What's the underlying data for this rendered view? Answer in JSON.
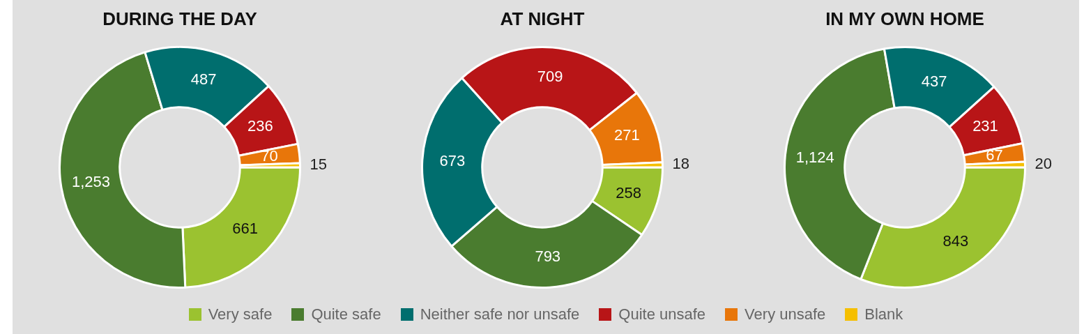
{
  "chart_data": [
    {
      "type": "donut",
      "title": "DURING THE DAY",
      "categories": [
        "Very safe",
        "Quite safe",
        "Neither safe nor unsafe",
        "Quite unsafe",
        "Very unsafe",
        "Blank"
      ],
      "values": [
        661,
        1253,
        487,
        236,
        70,
        15
      ],
      "value_labels": [
        "661",
        "1,253",
        "487",
        "236",
        "70",
        "15"
      ],
      "colors": [
        "#9bc230",
        "#4a7c2f",
        "#006e6e",
        "#b81517",
        "#e8760a",
        "#f5bf00"
      ],
      "legend": "bottom"
    },
    {
      "type": "donut",
      "title": "AT NIGHT",
      "categories": [
        null,
        null,
        null,
        null,
        null,
        null
      ],
      "values": [
        258,
        793,
        673,
        709,
        271,
        18
      ],
      "colors": [
        "#9bc230",
        "#4a7c2f",
        "#006e6e",
        "#b81517",
        "#e8760a",
        "#f5bf00"
      ],
      "data_labels": true
    },
    {
      "type": "donut",
      "title": "IN MY OWN HOME",
      "categories": [
        null,
        null,
        null,
        null,
        null,
        null
      ],
      "values": [
        843,
        1124,
        437,
        231,
        67,
        20
      ],
      "value_labels": [
        "843",
        "1,124",
        "437",
        "231",
        "67",
        "20"
      ],
      "colors": [
        "#9bc230",
        "#4a7c2f",
        "#006e6e",
        "#b81517",
        "#e8760a",
        "#f5bf00"
      ]
    }
  ]
}
